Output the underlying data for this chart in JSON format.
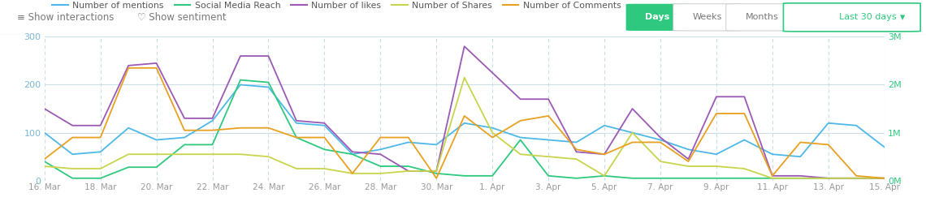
{
  "x_tick_labels": [
    "16. Mar",
    "18. Mar",
    "20. Mar",
    "22. Mar",
    "24. Mar",
    "26. Mar",
    "28. Mar",
    "30. Mar",
    "1. Apr",
    "3. Apr",
    "5. Apr",
    "7. Apr",
    "9. Apr",
    "11. Apr",
    "13. Apr",
    "15. Apr"
  ],
  "mentions": [
    100,
    55,
    60,
    110,
    85,
    90,
    125,
    200,
    195,
    120,
    115,
    55,
    65,
    80,
    75,
    120,
    110,
    90,
    85,
    80,
    115,
    100,
    85,
    65,
    55,
    85,
    55,
    50,
    120,
    115,
    70
  ],
  "social_reach": [
    40,
    5,
    5,
    28,
    28,
    75,
    75,
    210,
    205,
    90,
    65,
    55,
    30,
    30,
    15,
    10,
    10,
    85,
    10,
    5,
    10,
    5,
    5,
    5,
    5,
    5,
    5,
    5,
    5,
    5,
    5
  ],
  "likes": [
    150,
    115,
    115,
    240,
    245,
    130,
    130,
    260,
    260,
    125,
    120,
    60,
    55,
    20,
    20,
    280,
    225,
    170,
    170,
    60,
    55,
    150,
    90,
    45,
    175,
    175,
    10,
    10,
    5,
    5,
    5
  ],
  "shares": [
    30,
    25,
    25,
    55,
    55,
    55,
    55,
    55,
    50,
    25,
    25,
    15,
    15,
    20,
    20,
    215,
    100,
    55,
    50,
    45,
    10,
    100,
    40,
    30,
    30,
    25,
    5,
    5,
    5,
    5,
    5
  ],
  "comments": [
    45,
    90,
    90,
    235,
    235,
    105,
    105,
    110,
    110,
    90,
    90,
    15,
    90,
    90,
    5,
    135,
    90,
    125,
    135,
    65,
    55,
    80,
    80,
    40,
    140,
    140,
    10,
    80,
    75,
    10,
    5
  ],
  "mentions_color": "#4db8e8",
  "social_reach_color": "#2ec97e",
  "likes_color": "#9b59b6",
  "shares_color": "#c8d44b",
  "comments_color": "#e8a020",
  "bg_color": "#ffffff",
  "grid_color": "#c8dde8",
  "axis_tick_color": "#7ab8d0",
  "right_axis_color": "#2ec97e",
  "days_btn_color": "#2ec97e",
  "toolbar_bg": "#f7fbfd",
  "toolbar_text_color": "#777777",
  "btn_border_color": "#cccccc",
  "dropdown_border_color": "#2ec97e",
  "dropdown_text_color": "#2ec97e",
  "help_icon_color": "#aaaaaa",
  "ylim_left": [
    0,
    300
  ],
  "ylim_right": [
    0,
    3000000
  ],
  "yticks_left": [
    0,
    100,
    200,
    300
  ],
  "yticks_right": [
    0,
    1000000,
    2000000,
    3000000
  ],
  "linewidth": 1.3
}
